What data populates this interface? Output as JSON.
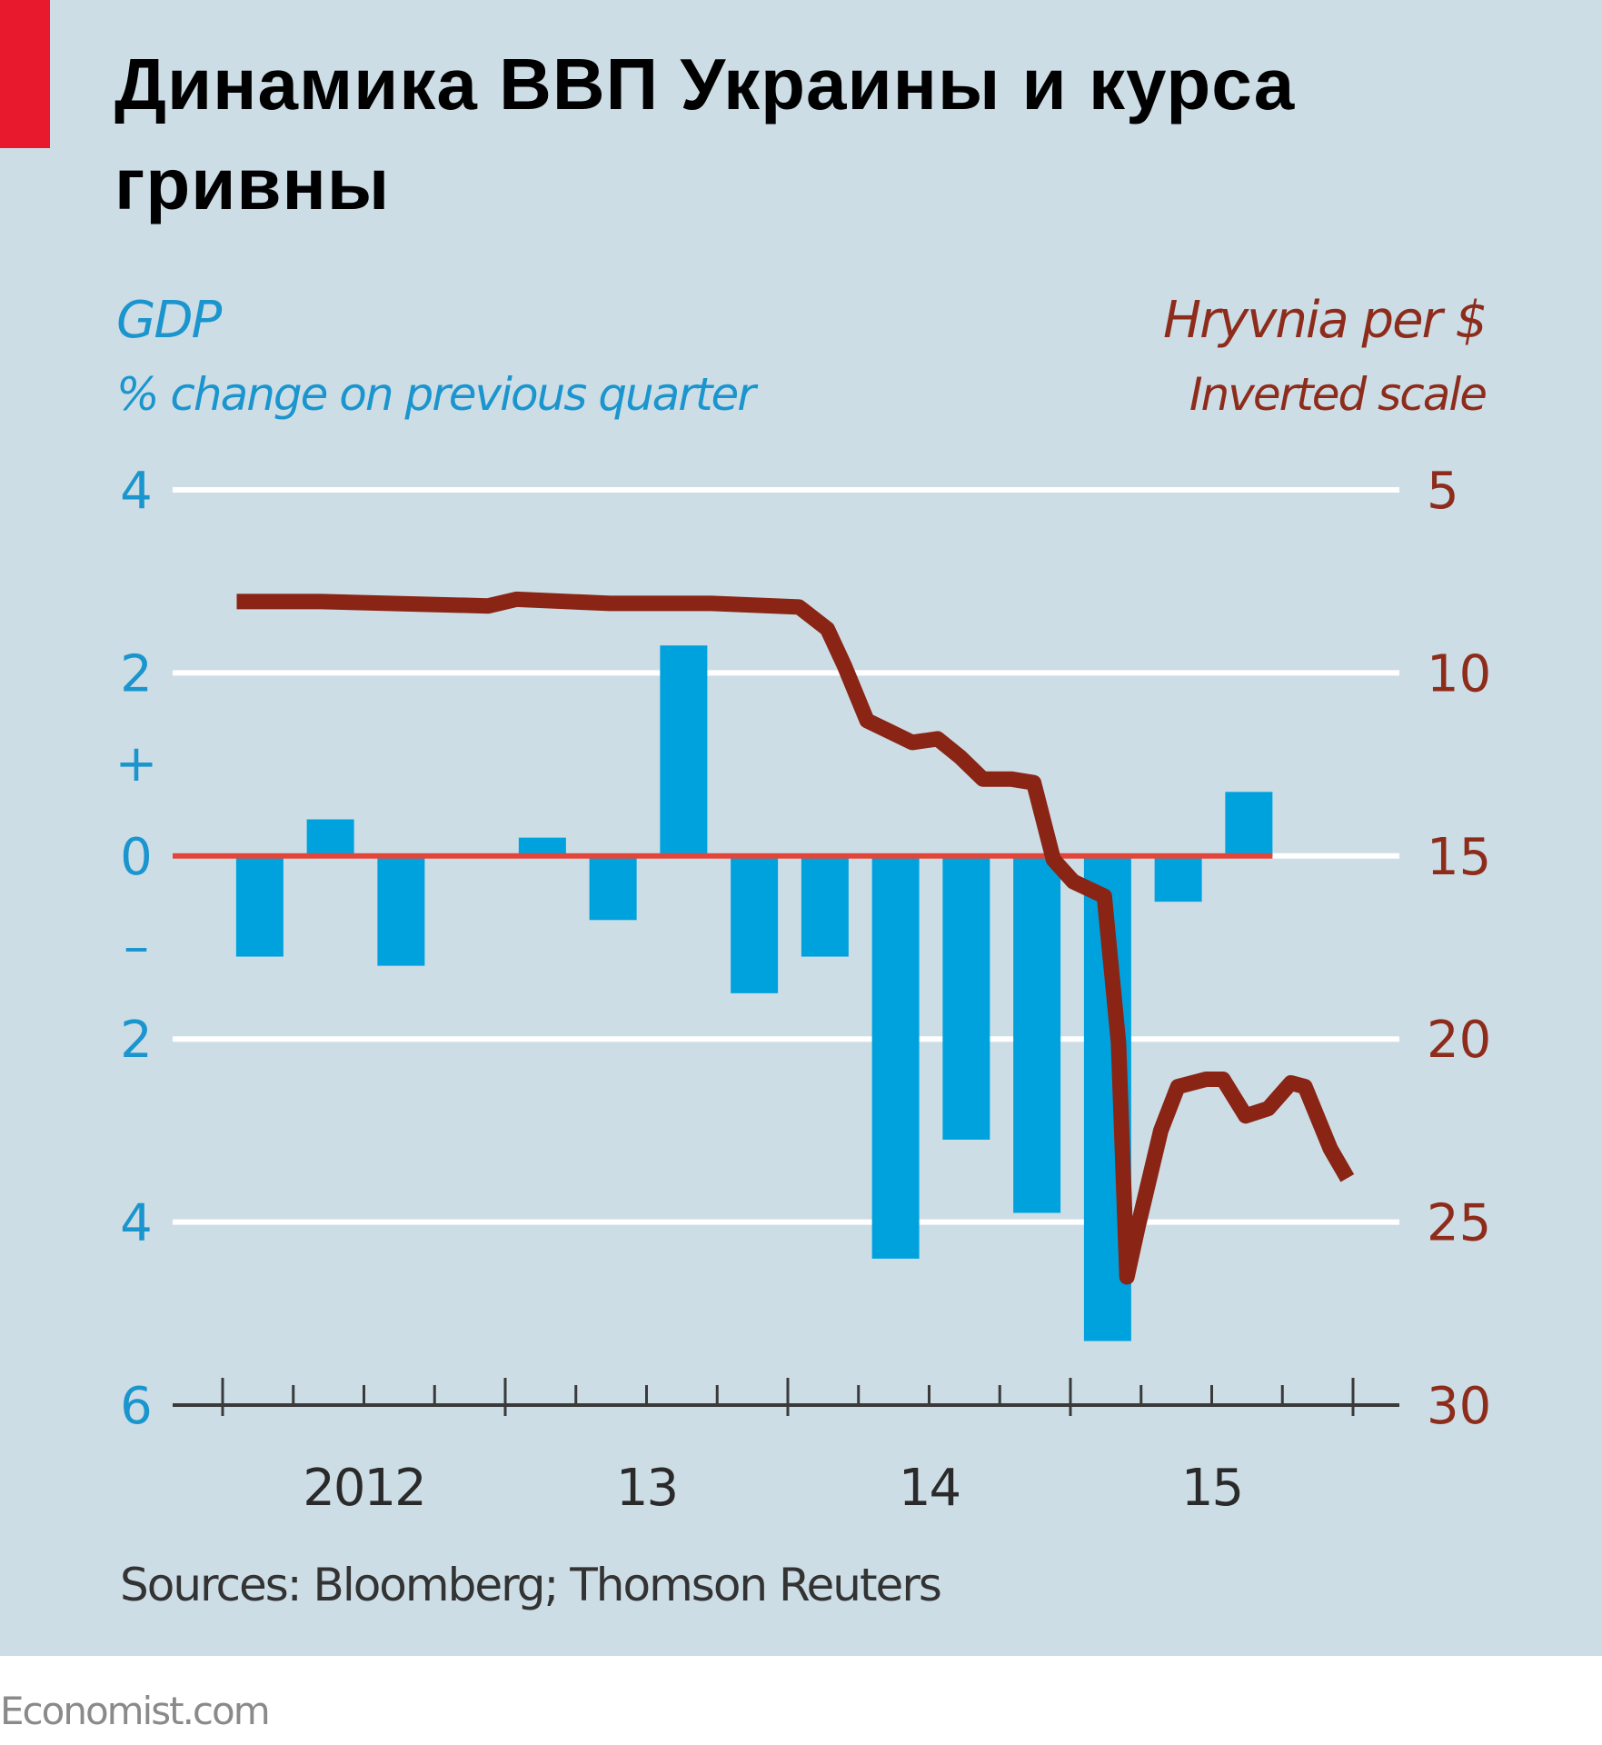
{
  "header": {
    "title": "Динамика ВВП Украины и курса гривны"
  },
  "footer": {
    "source": "Sources: Bloomberg; Thomson Reuters",
    "brand": "Economist.com"
  },
  "colors": {
    "background": "#cddde6",
    "accent_red": "#e8192c",
    "gdp_bars": "#00a2de",
    "gdp_axis_text": "#1b95cd",
    "hryvnia_line": "#8a2414",
    "hryvnia_axis_text": "#8e2c1c",
    "zero_line": "#e2463a",
    "gridline": "#ffffff"
  },
  "chart_data": {
    "type": "bar+line",
    "title": "Динамика ВВП Украины и курса гривны",
    "x_tick_labels": [
      "2012",
      "13",
      "14",
      "15"
    ],
    "x_range": [
      2012.0,
      2016.0
    ],
    "left_axis": {
      "label": "GDP",
      "sublabel": "% change on previous quarter",
      "ticks": [
        4,
        2,
        0,
        -2,
        -4,
        -6
      ],
      "tick_labels": [
        "4",
        "2",
        "0",
        "2",
        "4",
        "6"
      ],
      "sign_markers": [
        "+",
        "–"
      ],
      "range": [
        -6,
        4
      ]
    },
    "right_axis": {
      "label": "Hryvnia per $",
      "sublabel": "Inverted scale",
      "ticks": [
        5,
        10,
        15,
        20,
        25,
        30
      ],
      "tick_labels": [
        "5",
        "10",
        "15",
        "20",
        "25",
        "30"
      ],
      "range": [
        5,
        30
      ],
      "inverted": true
    },
    "grid": true,
    "series": [
      {
        "name": "GDP",
        "type": "bar",
        "axis": "left",
        "categories": [
          "2012Q1",
          "2012Q2",
          "2012Q3",
          "2012Q4",
          "2013Q1",
          "2013Q2",
          "2013Q3",
          "2013Q4",
          "2014Q1",
          "2014Q2",
          "2014Q3",
          "2014Q4",
          "2015Q1",
          "2015Q2",
          "2015Q3"
        ],
        "values": [
          -1.1,
          0.4,
          -1.2,
          0.0,
          0.2,
          -0.7,
          2.3,
          -1.5,
          -1.1,
          -4.4,
          -3.1,
          -3.9,
          -5.3,
          -0.5,
          0.7
        ]
      },
      {
        "name": "Hryvnia per $",
        "type": "line",
        "axis": "right",
        "x": [
          2012.05,
          2012.35,
          2012.94,
          2013.04,
          2013.37,
          2013.73,
          2014.04,
          2014.14,
          2014.2,
          2014.28,
          2014.36,
          2014.44,
          2014.53,
          2014.61,
          2014.69,
          2014.79,
          2014.87,
          2014.94,
          2015.01,
          2015.12,
          2015.17,
          2015.2,
          2015.24,
          2015.32,
          2015.38,
          2015.48,
          2015.54,
          2015.62,
          2015.7,
          2015.78,
          2015.83,
          2015.92,
          2015.98
        ],
        "values": [
          8.05,
          8.05,
          8.17,
          7.99,
          8.1,
          8.1,
          8.2,
          8.8,
          9.8,
          11.3,
          11.6,
          11.9,
          11.8,
          12.3,
          12.9,
          12.9,
          13.0,
          15.1,
          15.7,
          16.1,
          20.1,
          26.5,
          25.1,
          22.5,
          21.3,
          21.1,
          21.1,
          22.1,
          21.9,
          21.2,
          21.3,
          23.0,
          23.8
        ]
      }
    ]
  }
}
